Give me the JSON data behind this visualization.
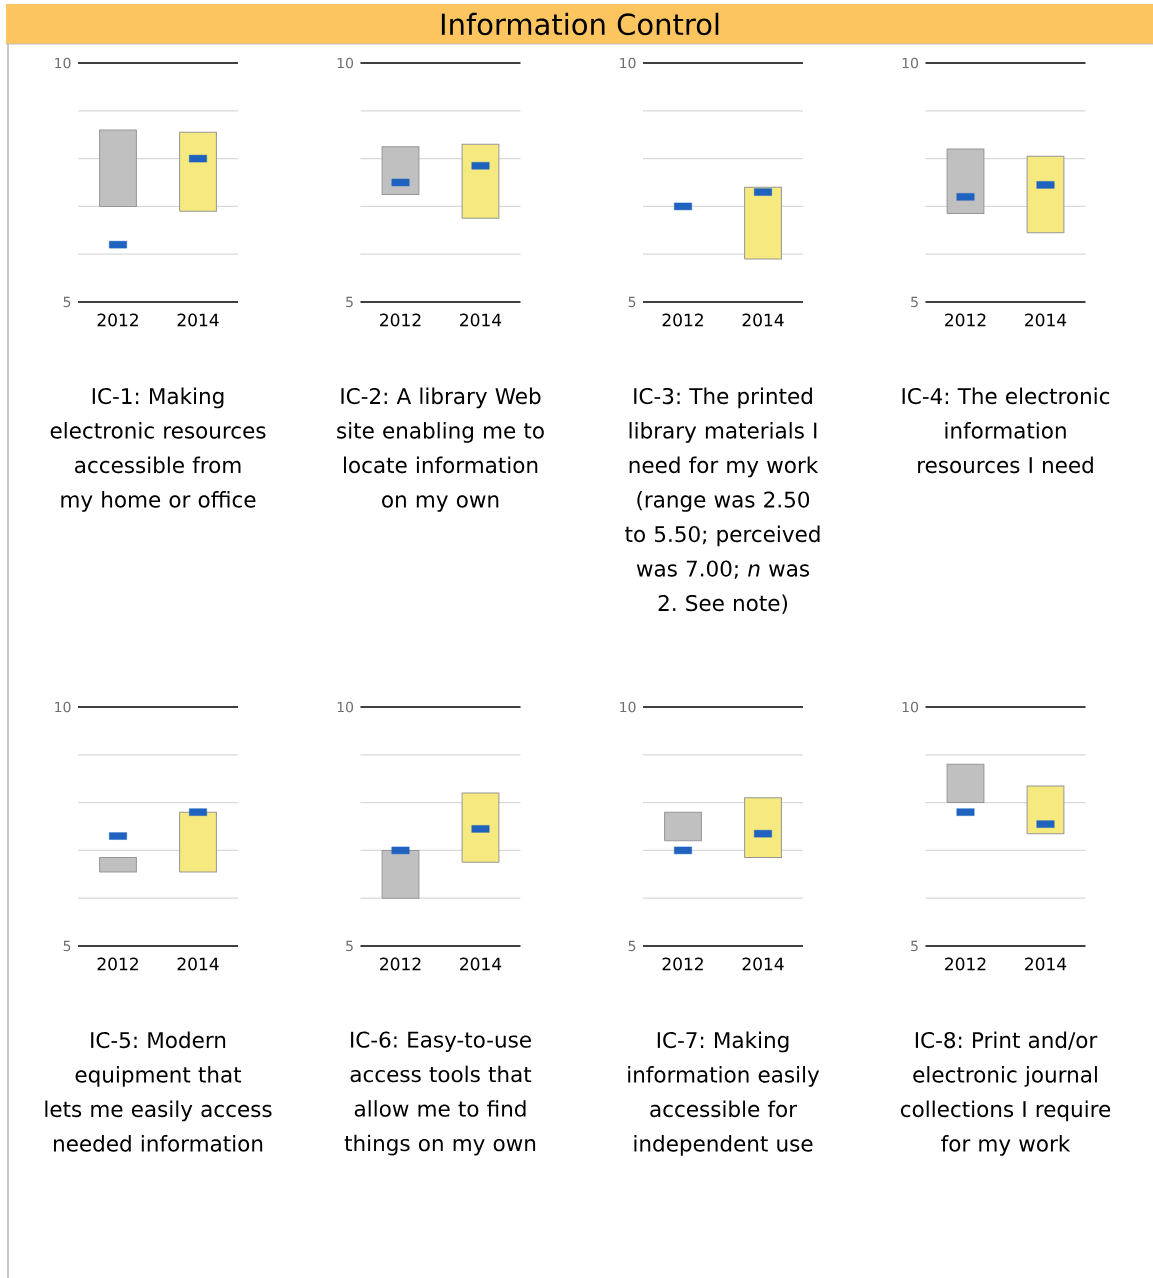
{
  "chart_data": [
    {
      "type": "other",
      "title": "Information Control"
    },
    {
      "type": "bar",
      "categories": [
        "2012",
        "2014"
      ],
      "xlabel": "IC-1: Making electronic resources accessible from my home or office",
      "ylim": [
        5,
        10
      ],
      "yticks": [
        {
          "value": 5,
          "label": "5"
        },
        {
          "value": 6,
          "label": null
        },
        {
          "value": 7,
          "label": null
        },
        {
          "value": 8,
          "label": null
        },
        {
          "value": 9,
          "label": null
        },
        {
          "value": 10,
          "label": "10"
        }
      ],
      "grid": "y",
      "series": [
        {
          "type": "bar",
          "colors": [
            "#c0c0c0",
            "#f5e97f"
          ],
          "base": [
            7.0,
            6.9
          ],
          "values": [
            1.6,
            1.65
          ]
        },
        {
          "type": "scatter",
          "color": "#1f63bf",
          "marker": "square",
          "values": [
            6.2,
            8.0
          ]
        }
      ]
    },
    {
      "type": "bar",
      "categories": [
        "2012",
        "2014"
      ],
      "xlabel": "IC-2: A library Web site enabling me to locate information on my own",
      "ylim": [
        5,
        10
      ],
      "yticks": [
        {
          "value": 5,
          "label": "5"
        },
        {
          "value": 6,
          "label": null
        },
        {
          "value": 7,
          "label": null
        },
        {
          "value": 8,
          "label": null
        },
        {
          "value": 9,
          "label": null
        },
        {
          "value": 10,
          "label": "10"
        }
      ],
      "grid": "y",
      "series": [
        {
          "type": "bar",
          "colors": [
            "#c0c0c0",
            "#f5e97f"
          ],
          "base": [
            7.25,
            6.75
          ],
          "values": [
            1.0,
            1.55
          ]
        },
        {
          "type": "scatter",
          "color": "#1f63bf",
          "marker": "square",
          "values": [
            7.5,
            7.85
          ]
        }
      ]
    },
    {
      "type": "bar",
      "categories": [
        "2012",
        "2014"
      ],
      "xlabel": "IC-3: The printed library materials I need for my work (range was 2.50 to 5.50; perceived was 7.00; *n* was 2. See note)",
      "ylim": [
        5,
        10
      ],
      "yticks": [
        {
          "value": 5,
          "label": "5"
        },
        {
          "value": 6,
          "label": null
        },
        {
          "value": 7,
          "label": null
        },
        {
          "value": 8,
          "label": null
        },
        {
          "value": 9,
          "label": null
        },
        {
          "value": 10,
          "label": "10"
        }
      ],
      "grid": "y",
      "series": [
        {
          "type": "bar",
          "colors": [
            "#c0c0c0",
            "#f5e97f"
          ],
          "base": [
            null,
            5.9
          ],
          "values": [
            null,
            1.5
          ]
        },
        {
          "type": "scatter",
          "color": "#1f63bf",
          "marker": "square",
          "values": [
            7.0,
            7.3
          ]
        }
      ]
    },
    {
      "type": "bar",
      "categories": [
        "2012",
        "2014"
      ],
      "xlabel": "IC-4: The electronic information resources I need",
      "ylim": [
        5,
        10
      ],
      "yticks": [
        {
          "value": 5,
          "label": "5"
        },
        {
          "value": 6,
          "label": null
        },
        {
          "value": 7,
          "label": null
        },
        {
          "value": 8,
          "label": null
        },
        {
          "value": 9,
          "label": null
        },
        {
          "value": 10,
          "label": "10"
        }
      ],
      "grid": "y",
      "series": [
        {
          "type": "bar",
          "colors": [
            "#c0c0c0",
            "#f5e97f"
          ],
          "base": [
            6.85,
            6.45
          ],
          "values": [
            1.35,
            1.6
          ]
        },
        {
          "type": "scatter",
          "color": "#1f63bf",
          "marker": "square",
          "values": [
            7.2,
            7.45
          ]
        }
      ]
    },
    {
      "type": "bar",
      "categories": [
        "2012",
        "2014"
      ],
      "xlabel": "IC-5: Modern equipment that lets me easily access needed information",
      "ylim": [
        5,
        10
      ],
      "yticks": [
        {
          "value": 5,
          "label": "5"
        },
        {
          "value": 6,
          "label": null
        },
        {
          "value": 7,
          "label": null
        },
        {
          "value": 8,
          "label": null
        },
        {
          "value": 9,
          "label": null
        },
        {
          "value": 10,
          "label": "10"
        }
      ],
      "grid": "y",
      "series": [
        {
          "type": "bar",
          "colors": [
            "#c0c0c0",
            "#f5e97f"
          ],
          "base": [
            6.55,
            6.55
          ],
          "values": [
            0.3,
            1.25
          ]
        },
        {
          "type": "scatter",
          "color": "#1f63bf",
          "marker": "square",
          "values": [
            7.3,
            7.8
          ]
        }
      ]
    },
    {
      "type": "bar",
      "categories": [
        "2012",
        "2014"
      ],
      "xlabel": "IC-6: Easy-to-use access tools that allow me to find things on my own",
      "ylim": [
        5,
        10
      ],
      "yticks": [
        {
          "value": 5,
          "label": "5"
        },
        {
          "value": 6,
          "label": null
        },
        {
          "value": 7,
          "label": null
        },
        {
          "value": 8,
          "label": null
        },
        {
          "value": 9,
          "label": null
        },
        {
          "value": 10,
          "label": "10"
        }
      ],
      "grid": "y",
      "series": [
        {
          "type": "bar",
          "colors": [
            "#c0c0c0",
            "#f5e97f"
          ],
          "base": [
            6.0,
            6.75
          ],
          "values": [
            1.0,
            1.45
          ]
        },
        {
          "type": "scatter",
          "color": "#1f63bf",
          "marker": "square",
          "values": [
            7.0,
            7.45
          ]
        }
      ]
    },
    {
      "type": "bar",
      "categories": [
        "2012",
        "2014"
      ],
      "xlabel": "IC-7: Making information easily accessible for independent use",
      "ylim": [
        5,
        10
      ],
      "yticks": [
        {
          "value": 5,
          "label": "5"
        },
        {
          "value": 6,
          "label": null
        },
        {
          "value": 7,
          "label": null
        },
        {
          "value": 8,
          "label": null
        },
        {
          "value": 9,
          "label": null
        },
        {
          "value": 10,
          "label": "10"
        }
      ],
      "grid": "y",
      "series": [
        {
          "type": "bar",
          "colors": [
            "#c0c0c0",
            "#f5e97f"
          ],
          "base": [
            7.2,
            6.85
          ],
          "values": [
            0.6,
            1.25
          ]
        },
        {
          "type": "scatter",
          "color": "#1f63bf",
          "marker": "square",
          "values": [
            7.0,
            7.35
          ]
        }
      ]
    },
    {
      "type": "bar",
      "categories": [
        "2012",
        "2014"
      ],
      "xlabel": "IC-8: Print and/or electronic journal collections I require for my work",
      "ylim": [
        5,
        10
      ],
      "yticks": [
        {
          "value": 5,
          "label": "5"
        },
        {
          "value": 6,
          "label": null
        },
        {
          "value": 7,
          "label": null
        },
        {
          "value": 8,
          "label": null
        },
        {
          "value": 9,
          "label": null
        },
        {
          "value": 10,
          "label": "10"
        }
      ],
      "grid": "y",
      "series": [
        {
          "type": "bar",
          "colors": [
            "#c0c0c0",
            "#f5e97f"
          ],
          "base": [
            8.0,
            7.35
          ],
          "values": [
            0.8,
            1.0
          ]
        },
        {
          "type": "scatter",
          "color": "#1f63bf",
          "marker": "square",
          "values": [
            7.8,
            7.55
          ]
        }
      ]
    }
  ]
}
